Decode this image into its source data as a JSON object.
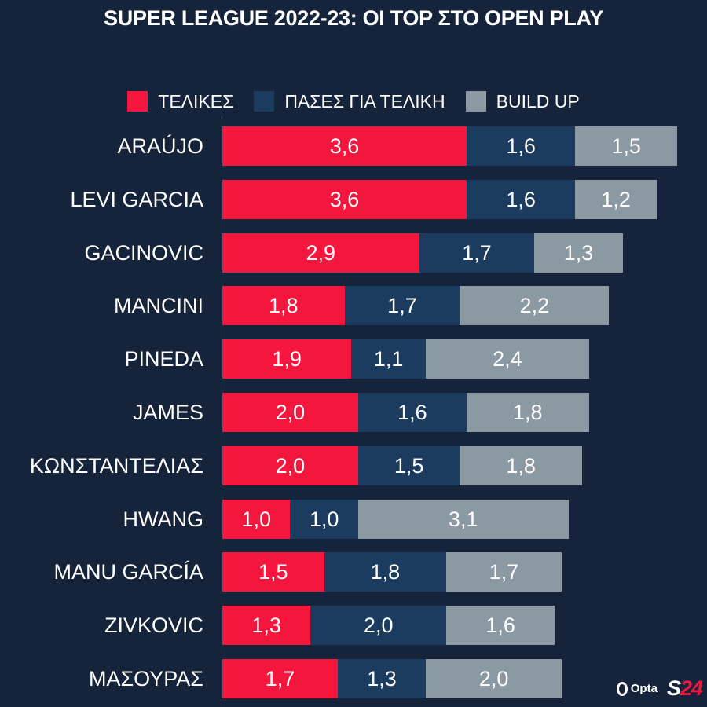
{
  "title": "SUPER LEAGUE 2022-23: ΟΙ TOP ΣΤΟ OPEN PLAY",
  "colors": {
    "background": "#15243a",
    "shots": "#f5163e",
    "key_passes": "#1b3b5f",
    "build_up": "#8b99a3"
  },
  "logos": {
    "opta": "Opta",
    "s24_letter": "S",
    "s24_number": "24"
  },
  "chart_data": {
    "type": "bar",
    "orientation": "horizontal",
    "stacked": true,
    "title": "SUPER LEAGUE 2022-23: ΟΙ TOP ΣΤΟ OPEN PLAY",
    "xlim": [
      0,
      8
    ],
    "grid": false,
    "legend_position": "top",
    "categories": [
      "ARAÚJO",
      "LEVI GARCIA",
      "GACINOVIC",
      "MANCINI",
      "PINEDA",
      "JAMES",
      "ΚΩΝΣΤΑΝΤΕΛΙΑΣ",
      "HWANG",
      "MANU GARCÍA",
      "ZIVKOVIC",
      "ΜΑΣΟΥΡΑΣ"
    ],
    "series": [
      {
        "name": "ΤΕΛΙΚΕΣ",
        "color": "#f5163e",
        "values": [
          3.6,
          3.6,
          2.9,
          1.8,
          1.9,
          2.0,
          2.0,
          1.0,
          1.5,
          1.3,
          1.7
        ],
        "labels": [
          "3,6",
          "3,6",
          "2,9",
          "1,8",
          "1,9",
          "2,0",
          "2,0",
          "1,0",
          "1,5",
          "1,3",
          "1,7"
        ]
      },
      {
        "name": "ΠΑΣΕΣ ΓΙΑ ΤΕΛΙΚΗ",
        "color": "#1b3b5f",
        "values": [
          1.6,
          1.6,
          1.7,
          1.7,
          1.1,
          1.6,
          1.5,
          1.0,
          1.8,
          2.0,
          1.3
        ],
        "labels": [
          "1,6",
          "1,6",
          "1,7",
          "1,7",
          "1,1",
          "1,6",
          "1,5",
          "1,0",
          "1,8",
          "2,0",
          "1,3"
        ]
      },
      {
        "name": "BUILD UP",
        "color": "#8b99a3",
        "values": [
          1.5,
          1.2,
          1.3,
          2.2,
          2.4,
          1.8,
          1.8,
          3.1,
          1.7,
          1.6,
          2.0
        ],
        "labels": [
          "1,5",
          "1,2",
          "1,3",
          "2,2",
          "2,4",
          "1,8",
          "1,8",
          "3,1",
          "1,7",
          "1,6",
          "2,0"
        ]
      }
    ]
  }
}
